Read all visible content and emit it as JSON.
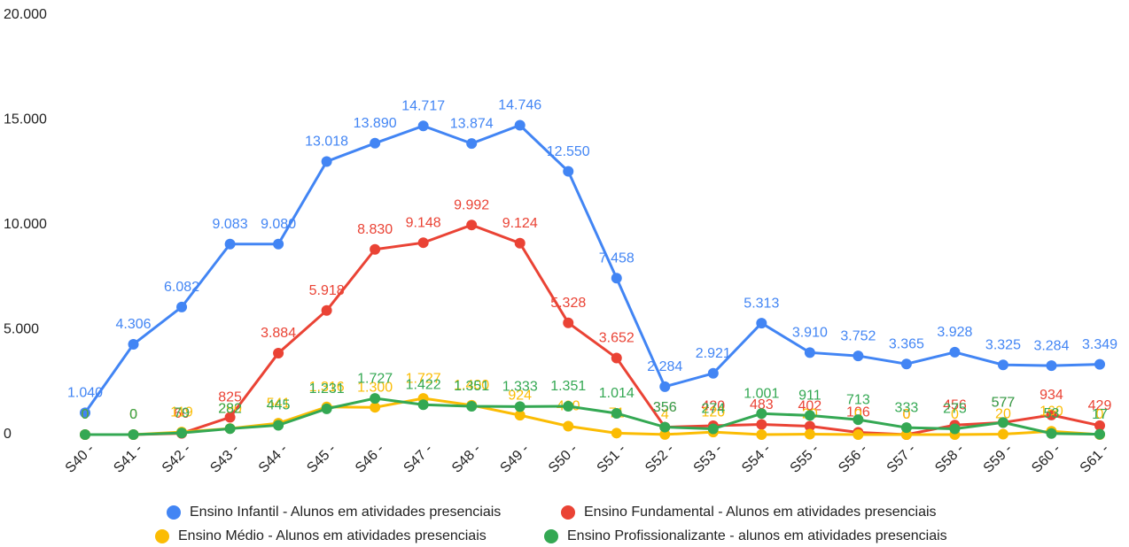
{
  "chart_data": {
    "type": "line",
    "categories": [
      "S40 -",
      "S41 -",
      "S42 -",
      "S43 -",
      "S44 -",
      "S45 -",
      "S46 -",
      "S47 -",
      "S48 -",
      "S49 -",
      "S50 -",
      "S51 -",
      "S52 -",
      "S53 -",
      "S54 -",
      "S55 -",
      "S56 -",
      "S57 -",
      "S58 -",
      "S59 -",
      "S60 -",
      "S61 -"
    ],
    "ylim": [
      0,
      20000
    ],
    "yticks": [
      {
        "value": 0,
        "label": "0"
      },
      {
        "value": 5000,
        "label": "5.000"
      },
      {
        "value": 10000,
        "label": "10.000"
      },
      {
        "value": 15000,
        "label": "15.000"
      },
      {
        "value": 20000,
        "label": "20.000"
      }
    ],
    "series": [
      {
        "name": "Ensino Infantil - Alunos em atividades presenciais",
        "color": "#4285f4",
        "values": [
          1040,
          4306,
          6082,
          9083,
          9080,
          13018,
          13890,
          14717,
          13874,
          14746,
          12550,
          7458,
          2284,
          2921,
          5313,
          3910,
          3752,
          3365,
          3928,
          3325,
          3284,
          3349
        ],
        "value_labels": [
          "1.040",
          "4.306",
          "6.082",
          "9.083",
          "9.080",
          "13.018",
          "13.890",
          "14.717",
          "13.874",
          "14.746",
          "12.550",
          "7.458",
          "2.284",
          "2.921",
          "5.313",
          "3.910",
          "3.752",
          "3.365",
          "3.928",
          "3.325",
          "3.284",
          "3.349"
        ]
      },
      {
        "name": "Ensino Fundamental - Alunos em atividades presenciais",
        "color": "#ea4335",
        "values": [
          0,
          0,
          60,
          825,
          3884,
          5918,
          8830,
          9148,
          9992,
          9124,
          5328,
          3652,
          356,
          420,
          483,
          402,
          106,
          0,
          456,
          577,
          934,
          429
        ],
        "value_labels": [
          "0",
          "0",
          "60",
          "825",
          "3.884",
          "5.918",
          "8.830",
          "9.148",
          "9.992",
          "9.124",
          "5.328",
          "3.652",
          "356",
          "420",
          "483",
          "402",
          "106",
          "0",
          "456",
          "577",
          "934",
          "429"
        ]
      },
      {
        "name": "Ensino Médio - Alunos em atividades presenciais",
        "color": "#fbbc04",
        "values": [
          0,
          0,
          119,
          290,
          541,
          1316,
          1300,
          1727,
          1400,
          924,
          400,
          71,
          4,
          120,
          0,
          20,
          0,
          0,
          0,
          20,
          160,
          0
        ],
        "value_labels": [
          "0",
          "0",
          "119",
          "290",
          "541",
          "1.316",
          "1.300",
          "1.727",
          "1.400",
          "924",
          "400",
          "71",
          "4",
          "120",
          "0",
          "20",
          "0",
          "0",
          "0",
          "20",
          "160",
          "0"
        ]
      },
      {
        "name": "Ensino Profissionalizante - alunos em atividades presenciais",
        "color": "#34a853",
        "values": [
          0,
          0,
          79,
          282,
          445,
          1231,
          1727,
          1422,
          1351,
          1333,
          1351,
          1014,
          356,
          274,
          1001,
          911,
          713,
          333,
          275,
          577,
          53,
          17
        ],
        "value_labels": [
          "0",
          "0",
          "79",
          "282",
          "445",
          "1.231",
          "1.727",
          "1.422",
          "1.351",
          "1.333",
          "1.351",
          "1.014",
          "356",
          "274",
          "1.001",
          "911",
          "713",
          "333",
          "275",
          "577",
          "53",
          "17"
        ]
      }
    ]
  }
}
